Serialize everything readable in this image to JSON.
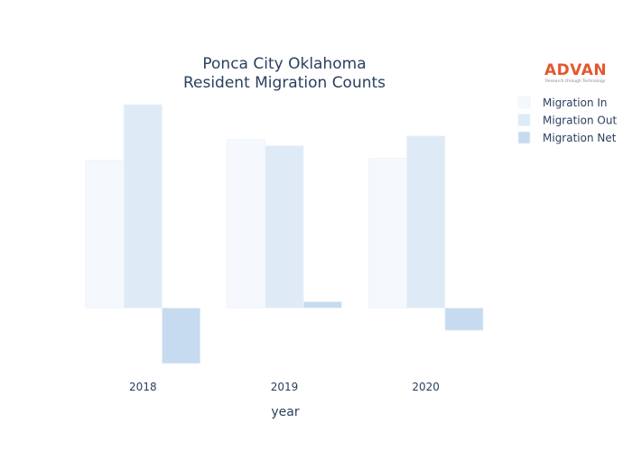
{
  "chart_data": {
    "type": "bar",
    "title_lines": [
      "Ponca City Oklahoma",
      "Resident Migration Counts"
    ],
    "xlabel": "year",
    "ylabel": "",
    "categories": [
      "2018",
      "2019",
      "2020"
    ],
    "series": [
      {
        "name": "Migration In",
        "values": [
          1650,
          1880,
          1670
        ],
        "color": "#f5f9fe"
      },
      {
        "name": "Migration Out",
        "values": [
          2270,
          1810,
          1920
        ],
        "color": "#deebf7"
      },
      {
        "name": "Migration Net",
        "values": [
          -620,
          70,
          -250
        ],
        "color": "#c6dbef"
      }
    ],
    "ylim": [
      -650,
      2350
    ],
    "grid": false,
    "legend_position": "top-right"
  },
  "logo": {
    "name": "ADVAN",
    "tagline": "Research through Technology"
  }
}
